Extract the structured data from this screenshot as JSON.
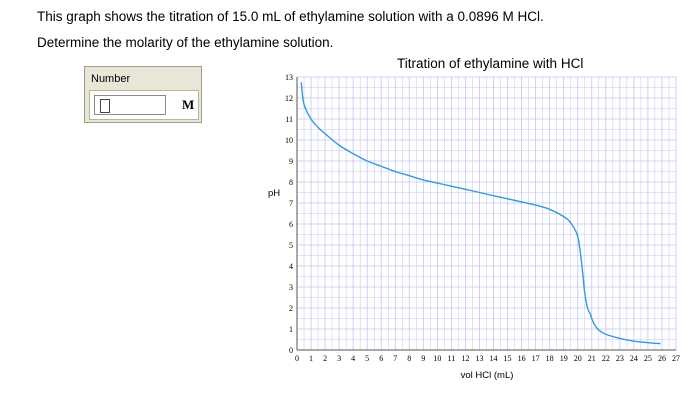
{
  "question": {
    "line1": "This graph shows the titration of 15.0 mL of ethylamine solution with a 0.0896 M HCl.",
    "line2": "Determine the molarity of the ethylamine solution."
  },
  "answer": {
    "title": "Number",
    "value": "",
    "unit": "M"
  },
  "colors": {
    "curve": "#3399e0",
    "grid": "#c4c4f0",
    "axis": "#555555"
  },
  "chart_data": {
    "type": "line",
    "title": "Titration of ethylamine with HCl",
    "xlabel": "vol HCl (mL)",
    "ylabel": "pH",
    "xlim": [
      0,
      27
    ],
    "ylim": [
      0,
      13
    ],
    "grid": true,
    "x_ticks": [
      0,
      1,
      2,
      3,
      4,
      5,
      6,
      7,
      8,
      9,
      10,
      11,
      12,
      13,
      14,
      15,
      16,
      17,
      18,
      19,
      20,
      21,
      22,
      23,
      24,
      25,
      26,
      27
    ],
    "y_ticks": [
      0,
      1,
      2,
      3,
      4,
      5,
      6,
      7,
      8,
      9,
      10,
      11,
      12,
      13
    ],
    "series": [
      {
        "x": [
          0.3,
          0.5,
          1,
          1.5,
          2,
          3,
          4,
          5,
          6,
          7,
          8,
          9,
          10,
          11,
          12,
          13,
          14,
          15,
          16,
          17,
          18,
          19,
          19.5,
          20,
          20.3,
          20.5,
          20.7,
          20.9,
          21.0,
          21.2,
          21.5,
          22,
          23,
          24,
          25,
          25.9
        ],
        "y": [
          12.75,
          11.7,
          11.0,
          10.6,
          10.3,
          9.75,
          9.35,
          9.0,
          8.75,
          8.5,
          8.3,
          8.1,
          7.95,
          7.8,
          7.65,
          7.5,
          7.35,
          7.2,
          7.05,
          6.9,
          6.7,
          6.35,
          6.05,
          5.4,
          4.0,
          2.7,
          2.0,
          1.7,
          1.5,
          1.2,
          0.95,
          0.75,
          0.55,
          0.42,
          0.35,
          0.3
        ]
      }
    ]
  }
}
